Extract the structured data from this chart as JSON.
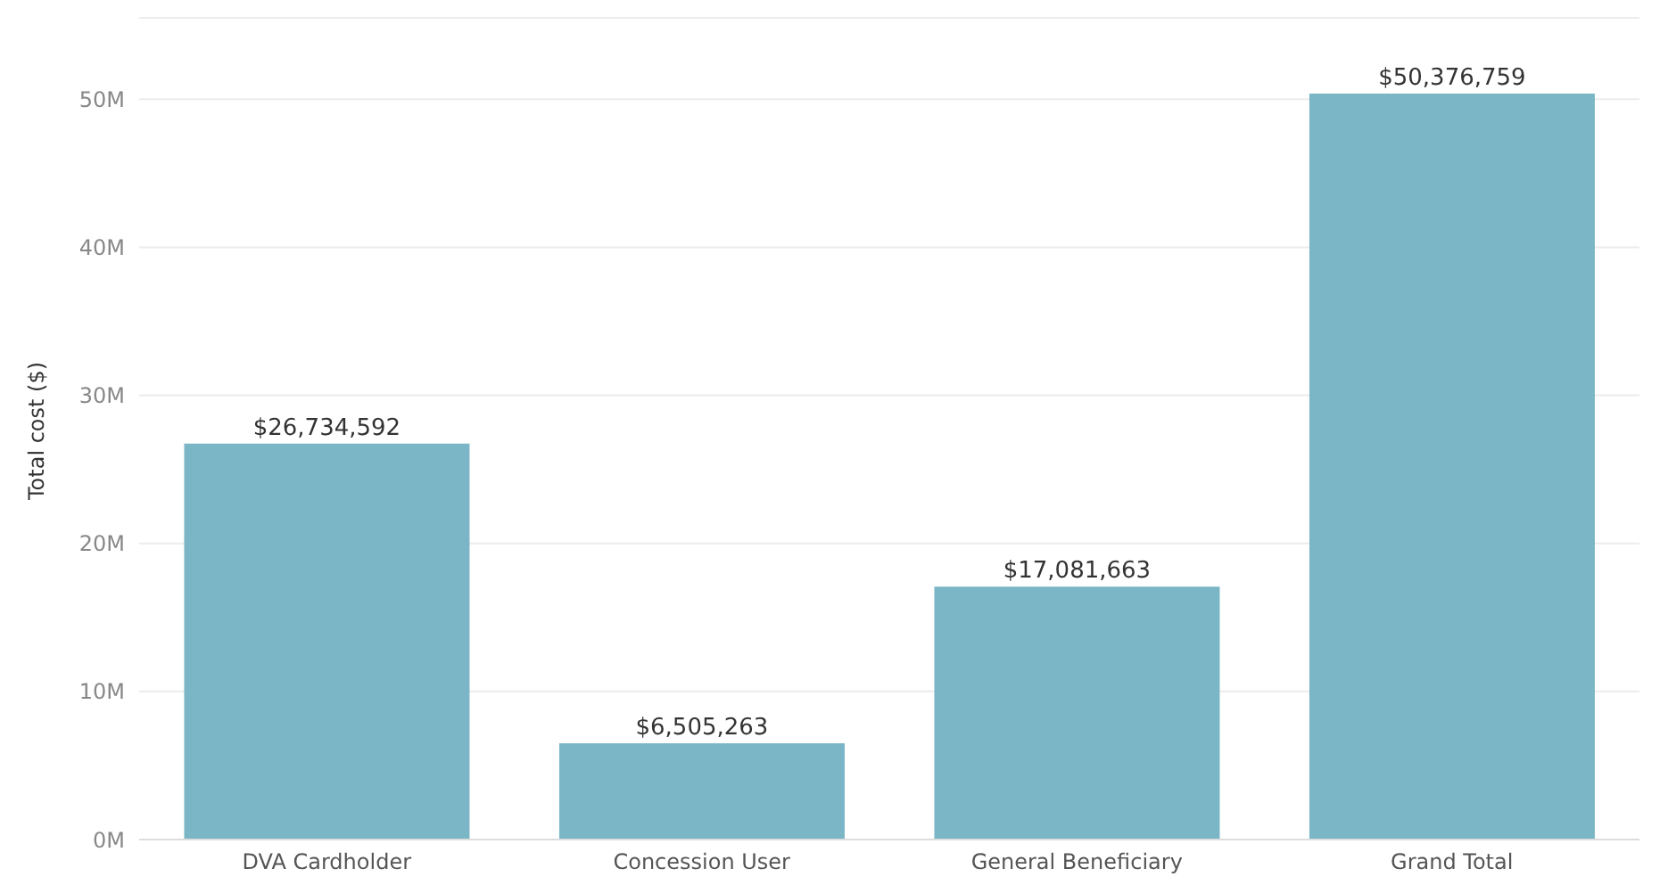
{
  "chart_data": {
    "type": "bar",
    "ylabel": "Total cost ($)",
    "categories": [
      "DVA Cardholder",
      "Concession User",
      "General Beneficiary",
      "Grand Total"
    ],
    "values": [
      26734592,
      6505263,
      17081663,
      50376759
    ],
    "value_labels": [
      "$26,734,592",
      "$6,505,263",
      "$17,081,663",
      "$50,376,759"
    ],
    "color": "#7ab6c6",
    "ylim": [
      0,
      55500000
    ],
    "yticks": [
      {
        "value": 0,
        "label": "0M"
      },
      {
        "value": 10000000,
        "label": "10M"
      },
      {
        "value": 20000000,
        "label": "20M"
      },
      {
        "value": 30000000,
        "label": "30M"
      },
      {
        "value": 40000000,
        "label": "40M"
      },
      {
        "value": 50000000,
        "label": "50M"
      }
    ],
    "grid": "y",
    "legend": false
  }
}
